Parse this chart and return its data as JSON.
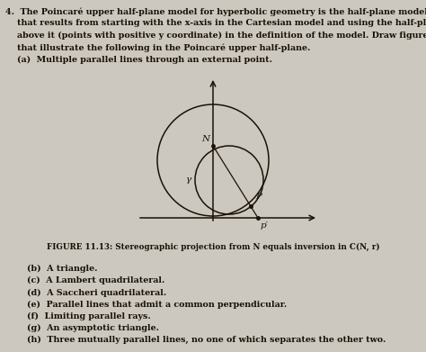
{
  "bg_color": "#cdc8bf",
  "figure_caption": "FIGURE 11.13: Stereographic projection from N equals inversion in C(N, r)",
  "N_label": "N",
  "Y_label": "γ",
  "P_label": "P",
  "P_prime_label": "p′",
  "items": [
    "(b)  A triangle.",
    "(c)  A Lambert quadrilateral.",
    "(d)  A Saccheri quadrilateral.",
    "(e)  Parallel lines that admit a common perpendicular.",
    "(f)  Limiting parallel rays.",
    "(g)  An asymptotic triangle.",
    "(h)  Three mutually parallel lines, no one of which separates the other two."
  ],
  "text_color": "#1a1105",
  "line_color": "#1a1105",
  "fontsize_body": 6.8,
  "fontsize_caption": 6.3,
  "fontsize_label": 7.5,
  "fontsize_items": 6.8
}
